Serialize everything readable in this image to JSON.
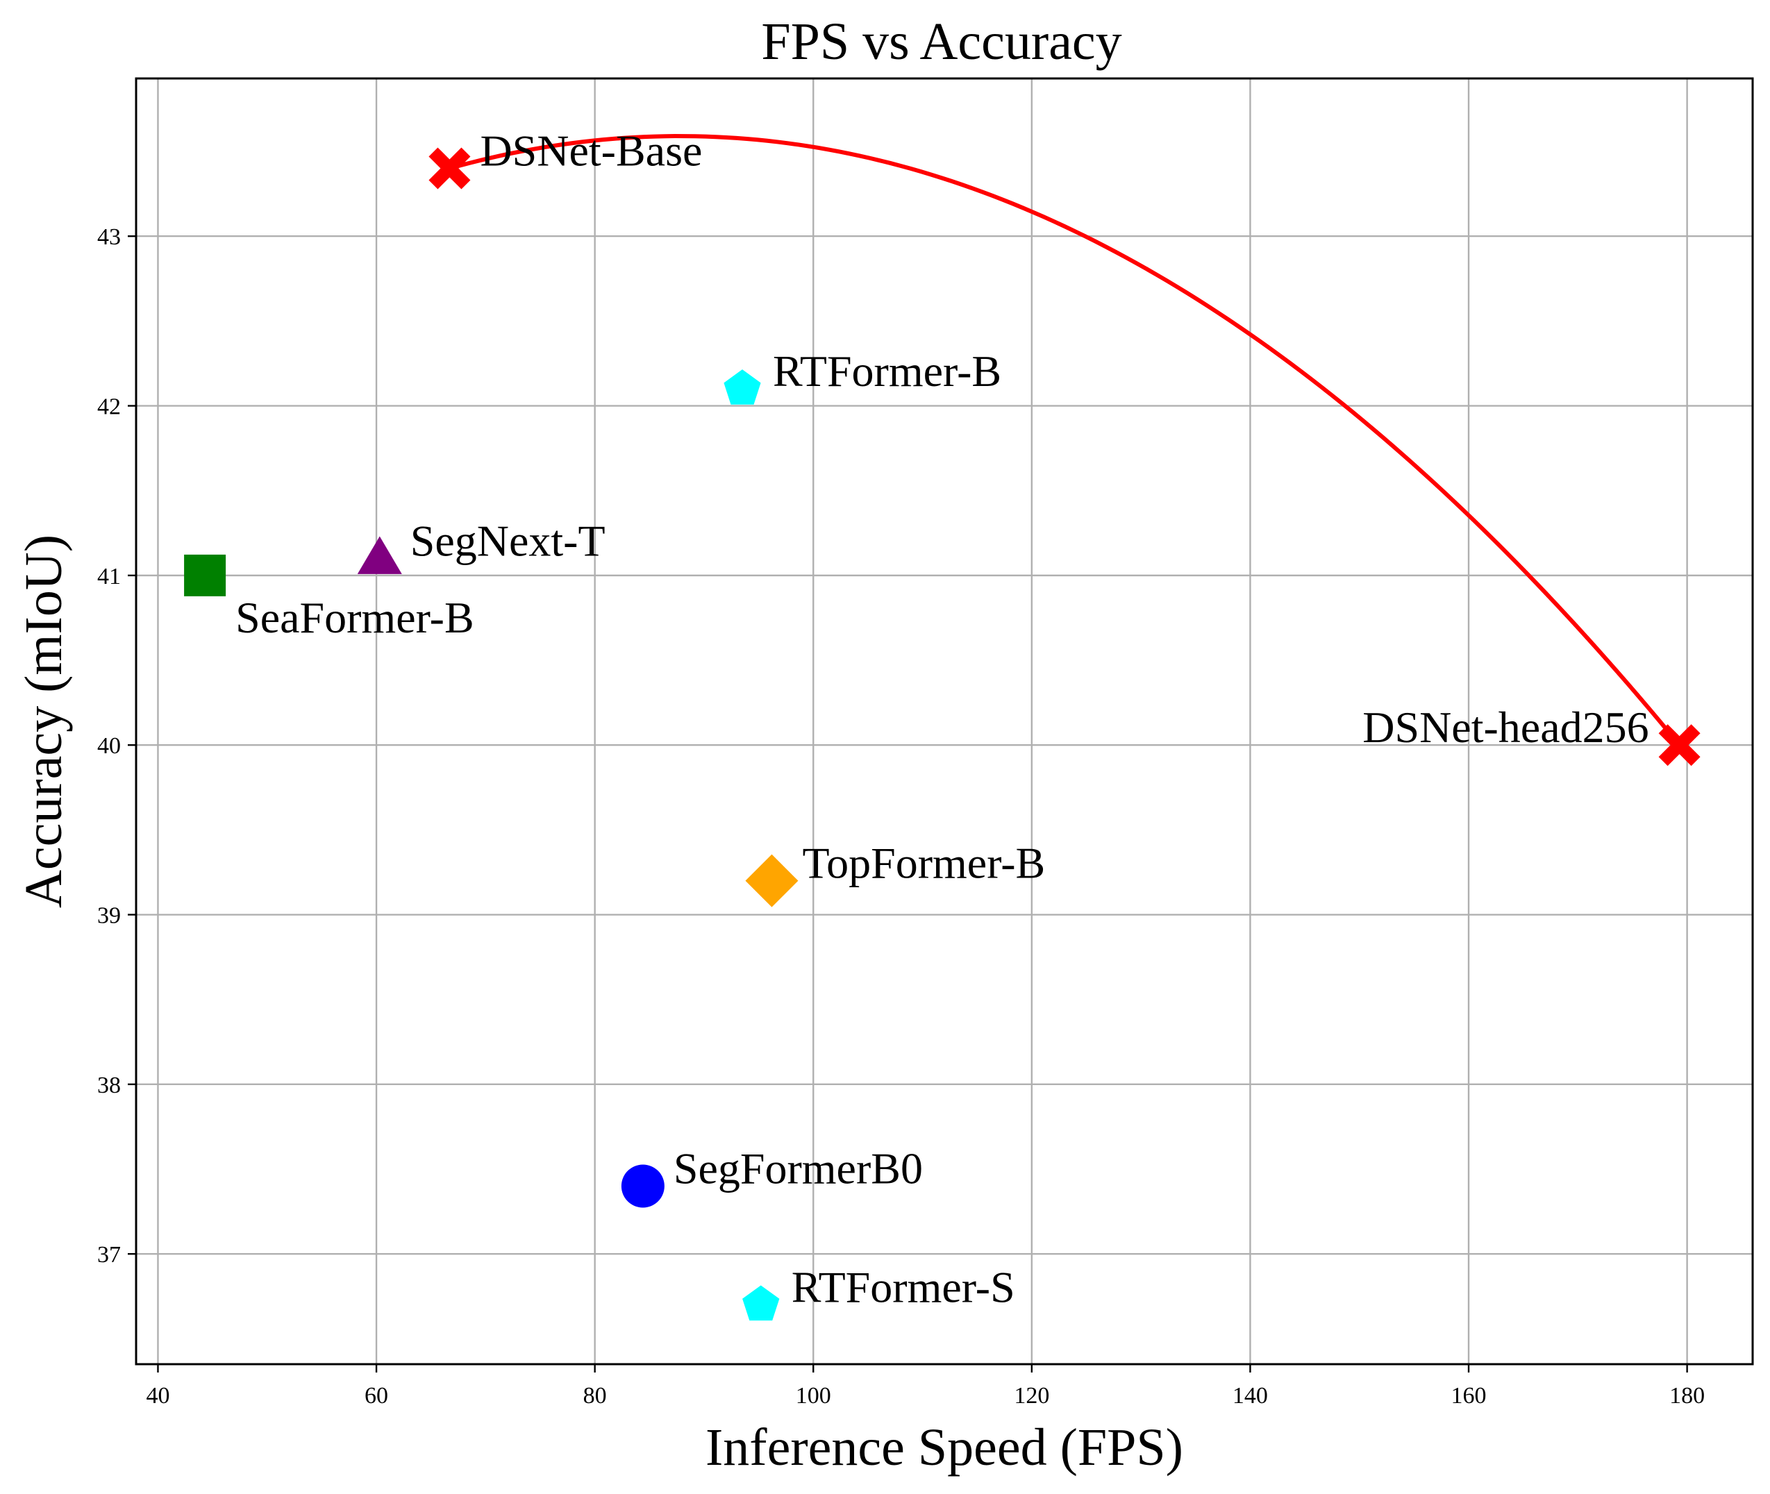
{
  "chart_data": {
    "type": "scatter",
    "title": "FPS vs Accuracy",
    "xlabel": "Inference Speed (FPS)",
    "ylabel": "Accuracy (mIoU)",
    "xlim": [
      38.0,
      186.0
    ],
    "ylim": [
      36.35,
      43.93
    ],
    "xticks": [
      40,
      60,
      80,
      100,
      120,
      140,
      160,
      180
    ],
    "yticks": [
      37,
      38,
      39,
      40,
      41,
      42,
      43
    ],
    "grid": true,
    "points": [
      {
        "label": "DSNet-Base",
        "x": 66.7,
        "y": 43.4,
        "marker": "X",
        "color": "#ff0000",
        "label_pos": "right"
      },
      {
        "label": "DSNet-head256",
        "x": 179.3,
        "y": 40.0,
        "marker": "X",
        "color": "#ff0000",
        "label_pos": "left"
      },
      {
        "label": "RTFormer-B",
        "x": 93.5,
        "y": 42.1,
        "marker": "pentagon",
        "color": "#00ffff",
        "label_pos": "right"
      },
      {
        "label": "SegNext-T",
        "x": 60.3,
        "y": 41.1,
        "marker": "triangle",
        "color": "#800080",
        "label_pos": "right"
      },
      {
        "label": "SeaFormer-B",
        "x": 44.3,
        "y": 41.0,
        "marker": "square",
        "color": "#008000",
        "label_pos": "below-right"
      },
      {
        "label": "TopFormer-B",
        "x": 96.2,
        "y": 39.2,
        "marker": "diamond",
        "color": "#ffa500",
        "label_pos": "right"
      },
      {
        "label": "SegFormerB0",
        "x": 84.4,
        "y": 37.4,
        "marker": "circle",
        "color": "#0000ff",
        "label_pos": "right"
      },
      {
        "label": "RTFormer-S",
        "x": 95.2,
        "y": 36.7,
        "marker": "pentagon",
        "color": "#00ffff",
        "label_pos": "right"
      }
    ],
    "curve": {
      "color": "#ff0000",
      "through": [
        [
          66.7,
          43.4
        ],
        [
          88.3,
          43.59
        ],
        [
          179.3,
          40.0
        ]
      ]
    }
  }
}
